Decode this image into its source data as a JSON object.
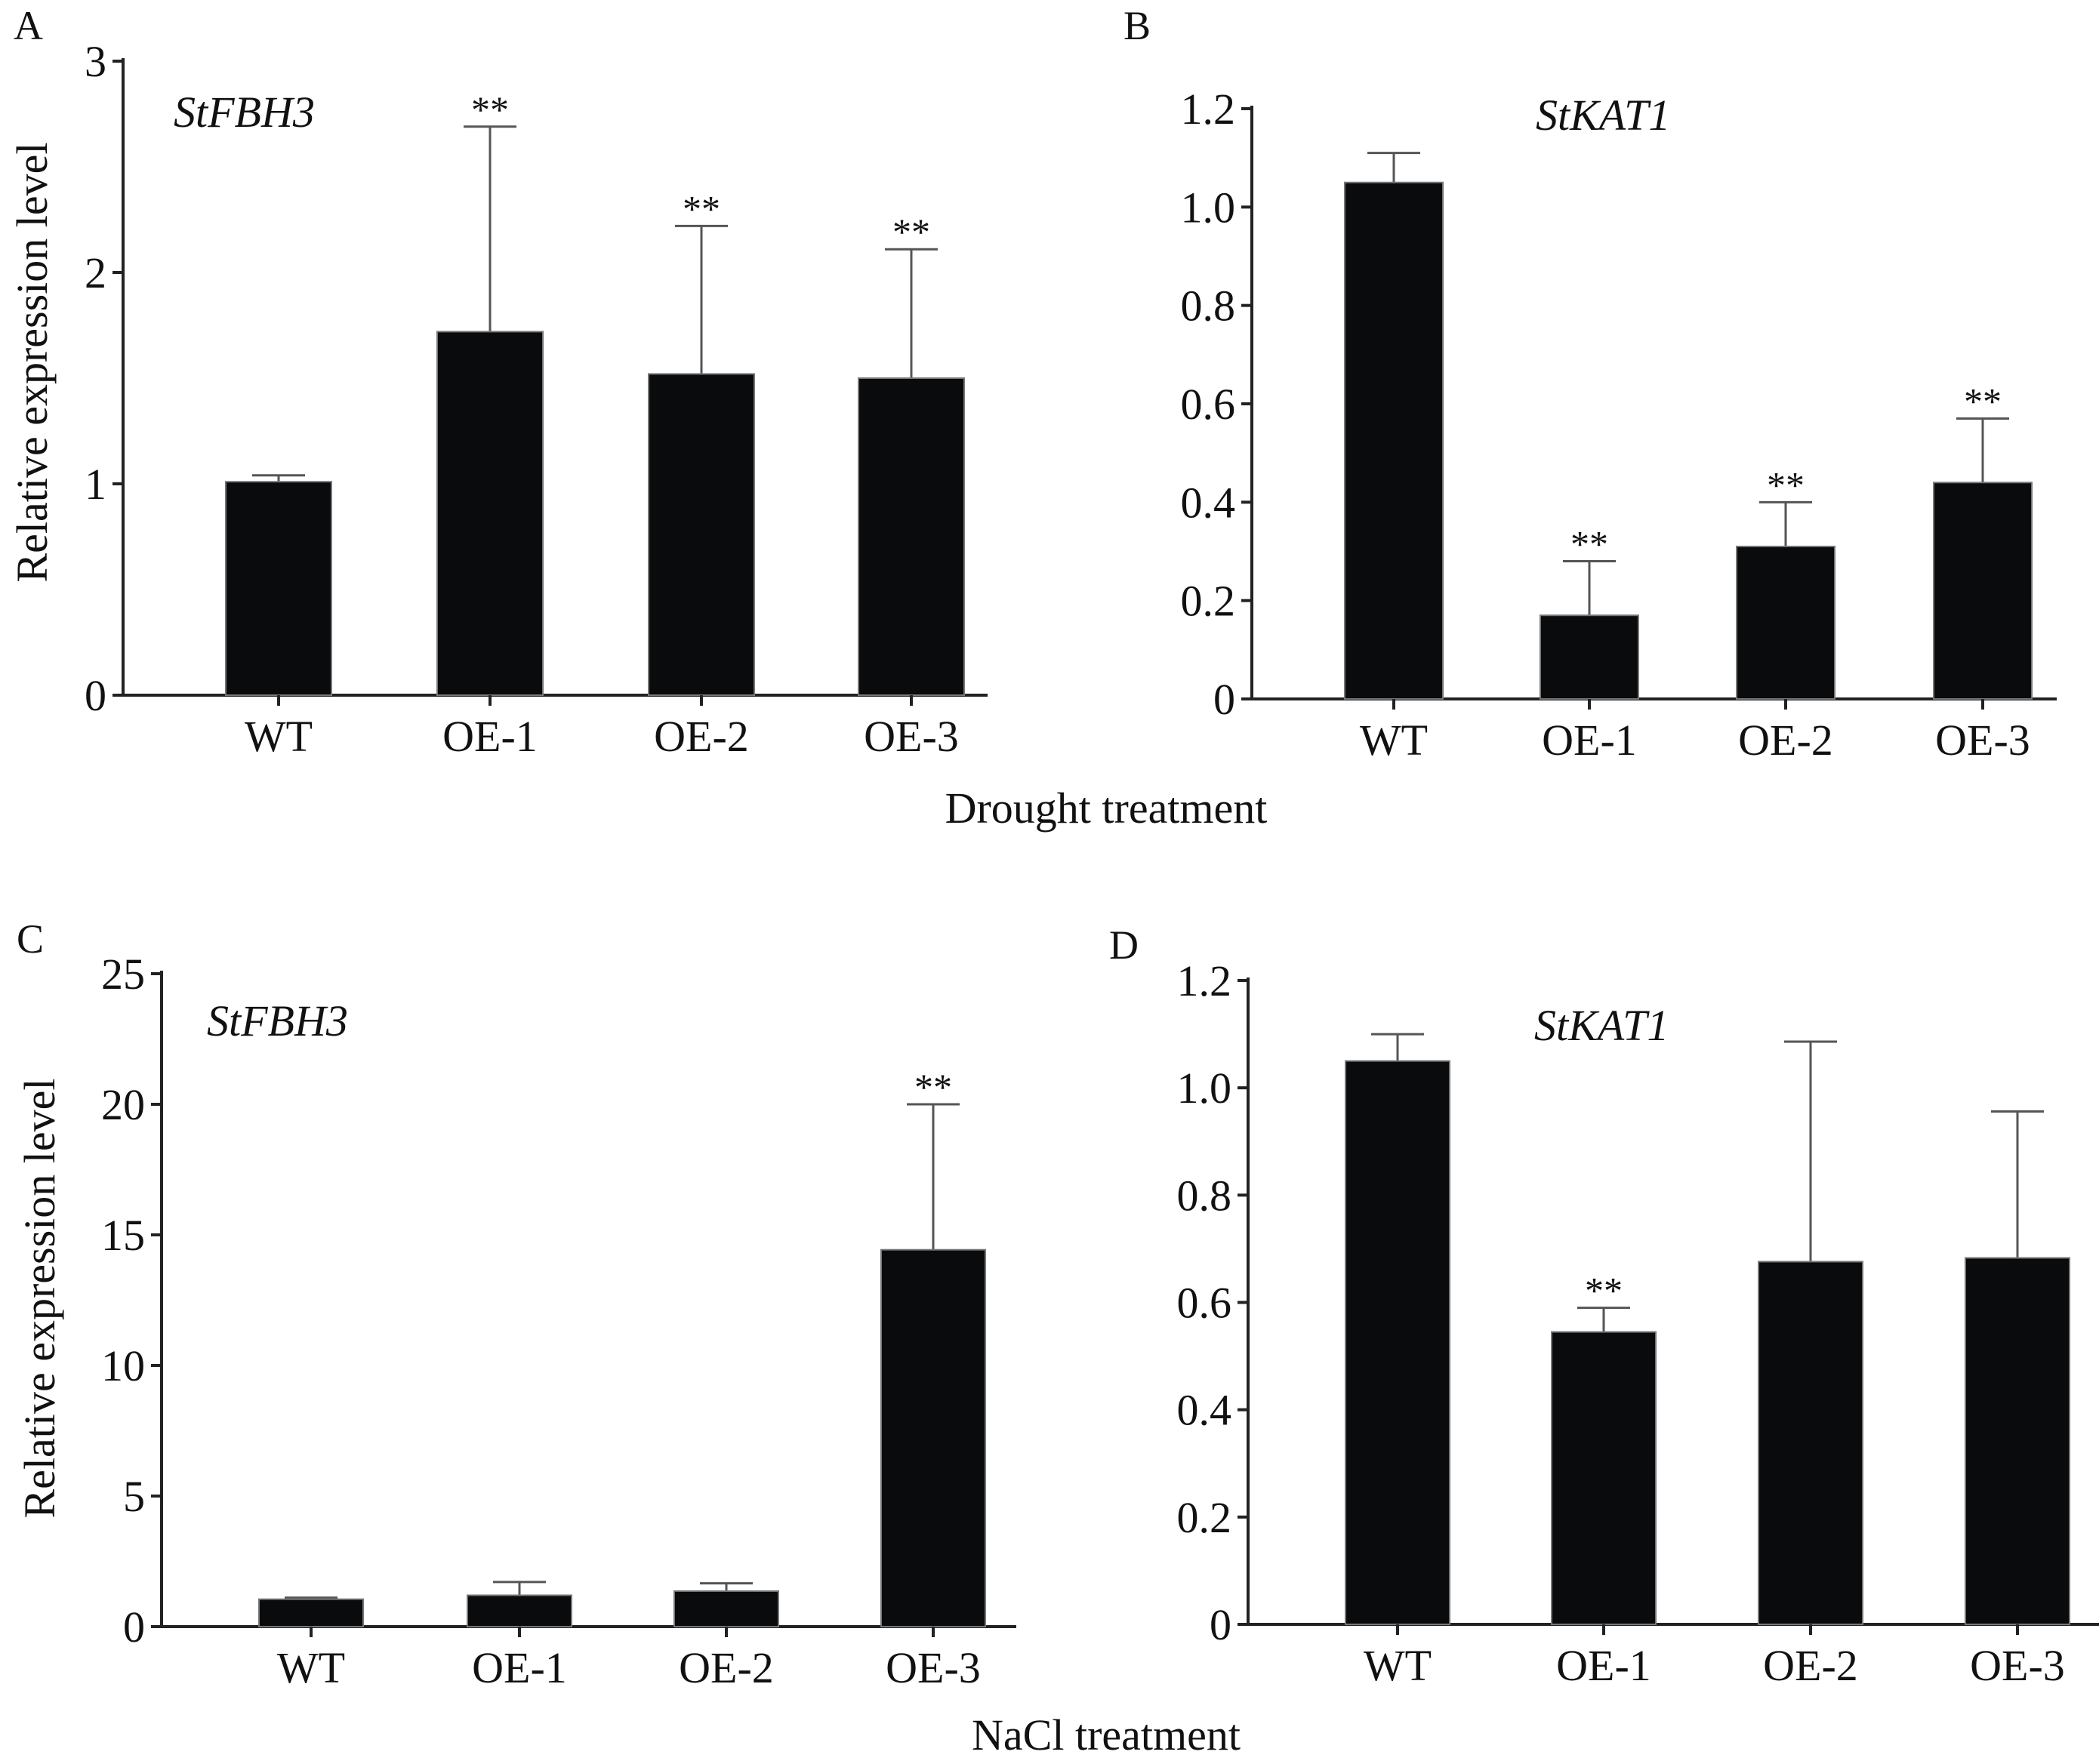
{
  "figure": {
    "row_titles": [
      "Drought treatment",
      "NaCl treatment"
    ]
  },
  "chart_data": [
    {
      "panel": "A",
      "type": "bar",
      "title": "StFBH3",
      "xlabel": "",
      "ylabel": "Relative expression level",
      "categories": [
        "WT",
        "OE-1",
        "OE-2",
        "OE-3"
      ],
      "values": [
        1.01,
        1.72,
        1.52,
        1.5
      ],
      "error_upper": [
        1.04,
        2.69,
        2.22,
        2.11
      ],
      "significance": [
        "",
        "**",
        "**",
        "**"
      ],
      "ylim": [
        0,
        3
      ],
      "yticks": [
        0,
        1,
        2,
        3
      ],
      "ytick_labels": [
        "0",
        "1",
        "2",
        "3"
      ],
      "grid": false
    },
    {
      "panel": "B",
      "type": "bar",
      "title": "StKAT1",
      "xlabel": "",
      "ylabel": "",
      "categories": [
        "WT",
        "OE-1",
        "OE-2",
        "OE-3"
      ],
      "values": [
        1.05,
        0.17,
        0.31,
        0.44
      ],
      "error_upper": [
        1.11,
        0.28,
        0.4,
        0.57
      ],
      "significance": [
        "",
        "**",
        "**",
        "**"
      ],
      "ylim": [
        0,
        1.2
      ],
      "yticks": [
        0,
        0.2,
        0.4,
        0.6,
        0.8,
        1.0,
        1.2
      ],
      "ytick_labels": [
        "0",
        "0.2",
        "0.4",
        "0.6",
        "0.8",
        "1.0",
        "1.2"
      ],
      "grid": false
    },
    {
      "panel": "C",
      "type": "bar",
      "title": "StFBH3",
      "xlabel": "",
      "ylabel": "Relative expression level",
      "categories": [
        "WT",
        "OE-1",
        "OE-2",
        "OE-3"
      ],
      "values": [
        1.05,
        1.2,
        1.36,
        14.43
      ],
      "error_upper": [
        1.11,
        1.71,
        1.66,
        20.0
      ],
      "significance": [
        "",
        "",
        "",
        "**"
      ],
      "ylim": [
        0,
        25
      ],
      "yticks": [
        0,
        5,
        10,
        15,
        20,
        25
      ],
      "ytick_labels": [
        "0",
        "5",
        "10",
        "15",
        "20",
        "25"
      ],
      "grid": false
    },
    {
      "panel": "D",
      "type": "bar",
      "title": "StKAT1",
      "xlabel": "",
      "ylabel": "",
      "categories": [
        "WT",
        "OE-1",
        "OE-2",
        "OE-3"
      ],
      "values": [
        1.05,
        0.545,
        0.676,
        0.683
      ],
      "error_upper": [
        1.1,
        0.59,
        1.086,
        0.956
      ],
      "significance": [
        "",
        "**",
        "",
        ""
      ],
      "ylim": [
        0,
        1.2
      ],
      "yticks": [
        0,
        0.2,
        0.4,
        0.6,
        0.8,
        1.0,
        1.2
      ],
      "ytick_labels": [
        "0",
        "0.2",
        "0.4",
        "0.6",
        "0.8",
        "1.0",
        "1.2"
      ],
      "grid": false
    }
  ]
}
